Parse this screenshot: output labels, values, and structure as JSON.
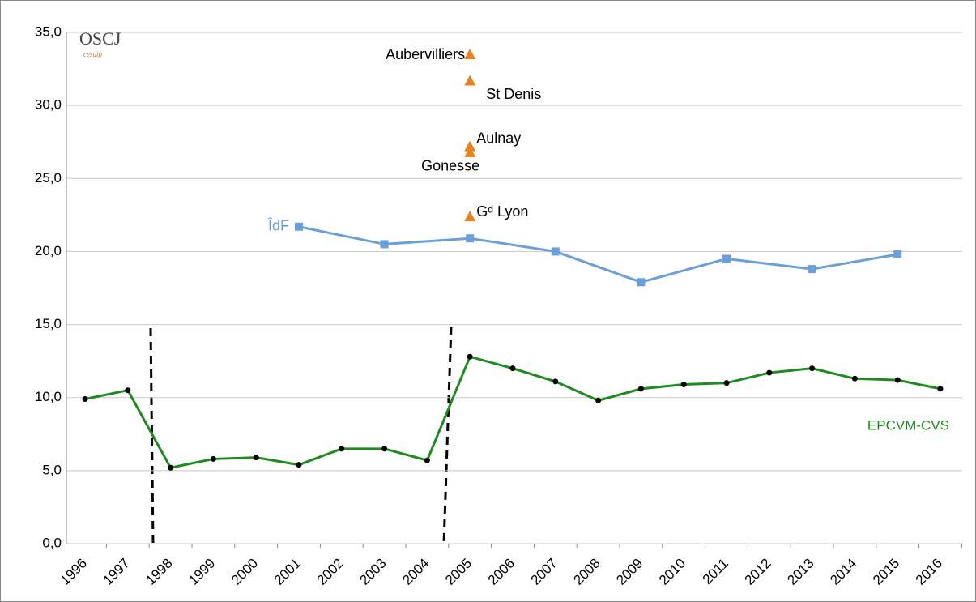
{
  "chart_data": {
    "type": "line",
    "logo": {
      "main": "OSCJ",
      "sub": "cesdip"
    },
    "categories": [
      "1996",
      "1997",
      "1998",
      "1999",
      "2000",
      "2001",
      "2002",
      "2003",
      "2004",
      "2005",
      "2006",
      "2007",
      "2008",
      "2009",
      "2010",
      "2011",
      "2012",
      "2013",
      "2014",
      "2015",
      "2016"
    ],
    "ylim": [
      0,
      35
    ],
    "yticks": [
      {
        "value": 0,
        "label": "0,0"
      },
      {
        "value": 5,
        "label": "5,0"
      },
      {
        "value": 10,
        "label": "10,0"
      },
      {
        "value": 15,
        "label": "15,0"
      },
      {
        "value": 20,
        "label": "20,0"
      },
      {
        "value": 25,
        "label": "25,0"
      },
      {
        "value": 30,
        "label": "30,0"
      },
      {
        "value": 35,
        "label": "35,0"
      }
    ],
    "grid": true,
    "series": [
      {
        "name": "EPCVM-CVS",
        "color": "#1f8a1f",
        "marker_color": "#000000",
        "x": [
          "1996",
          "1997",
          "1998",
          "1999",
          "2000",
          "2001",
          "2002",
          "2003",
          "2004",
          "2005",
          "2006",
          "2007",
          "2008",
          "2009",
          "2010",
          "2011",
          "2012",
          "2013",
          "2014",
          "2015",
          "2016"
        ],
        "values": [
          9.9,
          10.5,
          5.2,
          5.8,
          5.9,
          5.4,
          6.5,
          6.5,
          5.7,
          12.8,
          12.0,
          11.1,
          9.8,
          10.6,
          10.9,
          11.0,
          11.7,
          12.0,
          11.3,
          11.2,
          10.6
        ]
      },
      {
        "name": "ÎdF",
        "color": "#6a9fdc",
        "marker_color": "#6a9fdc",
        "x": [
          "2001",
          "2003",
          "2005",
          "2007",
          "2009",
          "2011",
          "2013",
          "2015"
        ],
        "values": [
          21.7,
          20.5,
          20.9,
          20.0,
          17.9,
          19.5,
          18.8,
          19.8
        ]
      }
    ],
    "points": {
      "color": "#e8821e",
      "x": "2005",
      "labels": [
        "Aubervilliers",
        "St Denis",
        "Aulnay",
        "Gonesse",
        "Gᵈ Lyon"
      ],
      "values": [
        33.5,
        31.7,
        27.2,
        26.8,
        22.4
      ]
    }
  }
}
